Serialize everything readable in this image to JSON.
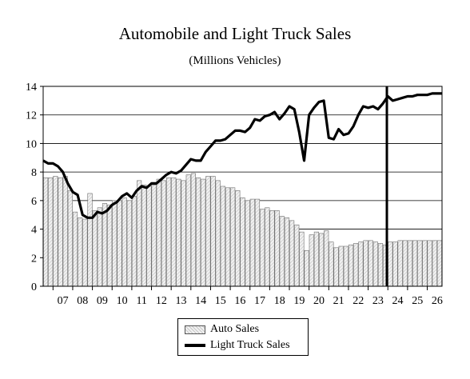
{
  "chart_data": {
    "type": "bar",
    "title": "Automobile and Light Truck Sales",
    "subtitle": "(Millions Vehicles)",
    "xlabel": "",
    "ylabel": "",
    "ylim": [
      0,
      14
    ],
    "y_ticks": [
      "0",
      "2",
      "4",
      "6",
      "8",
      "10",
      "12",
      "14"
    ],
    "categories": [
      "07",
      "08",
      "09",
      "10",
      "11",
      "12",
      "13",
      "14",
      "15",
      "16",
      "17",
      "18",
      "19",
      "20",
      "21",
      "22",
      "23",
      "24",
      "25",
      "26"
    ],
    "x_range": [
      2006.5,
      2026.75
    ],
    "grid": "horizontal",
    "legend_position": "bottom-center",
    "annotation": {
      "type": "vertical-line",
      "x": 2023.95
    },
    "series": [
      {
        "name": "Auto Sales",
        "type": "bar",
        "x": [
          2006.625,
          2006.875,
          2007.125,
          2007.375,
          2007.625,
          2007.875,
          2008.125,
          2008.375,
          2008.625,
          2008.875,
          2009.125,
          2009.375,
          2009.625,
          2009.875,
          2010.125,
          2010.375,
          2010.625,
          2010.875,
          2011.125,
          2011.375,
          2011.625,
          2011.875,
          2012.125,
          2012.375,
          2012.625,
          2012.875,
          2013.125,
          2013.375,
          2013.625,
          2013.875,
          2014.125,
          2014.375,
          2014.625,
          2014.875,
          2015.125,
          2015.375,
          2015.625,
          2015.875,
          2016.125,
          2016.375,
          2016.625,
          2016.875,
          2017.125,
          2017.375,
          2017.625,
          2017.875,
          2018.125,
          2018.375,
          2018.625,
          2018.875,
          2019.125,
          2019.375,
          2019.625,
          2019.875,
          2020.125,
          2020.375,
          2020.625,
          2020.875,
          2021.125,
          2021.375,
          2021.625,
          2021.875,
          2022.125,
          2022.375,
          2022.625,
          2022.875,
          2023.125,
          2023.375,
          2023.625,
          2023.875,
          2024.125,
          2024.375,
          2024.625,
          2024.875,
          2025.125,
          2025.375,
          2025.625,
          2025.875,
          2026.125,
          2026.375,
          2026.625
        ],
        "values": [
          7.6,
          7.6,
          7.7,
          7.6,
          7.7,
          6.7,
          5.2,
          4.8,
          4.7,
          6.5,
          5.3,
          5.5,
          5.8,
          5.7,
          6.0,
          6.0,
          6.2,
          6.0,
          6.3,
          7.4,
          7.1,
          7.0,
          7.1,
          7.5,
          7.4,
          7.6,
          7.6,
          7.5,
          7.4,
          7.8,
          7.9,
          7.6,
          7.5,
          7.7,
          7.7,
          7.4,
          7.0,
          6.9,
          6.9,
          6.7,
          6.2,
          6.0,
          6.1,
          6.1,
          5.4,
          5.5,
          5.3,
          5.3,
          4.9,
          4.8,
          4.6,
          4.3,
          3.8,
          2.5,
          3.6,
          3.8,
          3.7,
          3.9,
          3.1,
          2.7,
          2.8,
          2.8,
          2.9,
          3.0,
          3.1,
          3.2,
          3.2,
          3.1,
          3.0,
          2.9,
          3.1,
          3.1,
          3.2,
          3.2,
          3.2,
          3.2,
          3.2,
          3.2,
          3.2,
          3.2,
          3.2
        ]
      },
      {
        "name": "Light Truck Sales",
        "type": "line",
        "x": [
          2006.5,
          2006.75,
          2007.0,
          2007.25,
          2007.5,
          2007.75,
          2008.0,
          2008.25,
          2008.5,
          2008.75,
          2009.0,
          2009.25,
          2009.5,
          2009.75,
          2010.0,
          2010.25,
          2010.5,
          2010.75,
          2011.0,
          2011.25,
          2011.5,
          2011.75,
          2012.0,
          2012.25,
          2012.5,
          2012.75,
          2013.0,
          2013.25,
          2013.5,
          2013.75,
          2014.0,
          2014.25,
          2014.5,
          2014.75,
          2015.0,
          2015.25,
          2015.5,
          2015.75,
          2016.0,
          2016.25,
          2016.5,
          2016.75,
          2017.0,
          2017.25,
          2017.5,
          2017.75,
          2018.0,
          2018.25,
          2018.5,
          2018.75,
          2019.0,
          2019.25,
          2019.5,
          2019.75,
          2020.0,
          2020.25,
          2020.5,
          2020.75,
          2021.0,
          2021.25,
          2021.5,
          2021.75,
          2022.0,
          2022.25,
          2022.5,
          2022.75,
          2023.0,
          2023.25,
          2023.5,
          2023.75,
          2024.0,
          2024.25,
          2024.5,
          2024.75,
          2025.0,
          2025.25,
          2025.5,
          2025.75,
          2026.0,
          2026.25,
          2026.5,
          2026.75
        ],
        "values": [
          8.8,
          8.6,
          8.6,
          8.4,
          8.0,
          7.2,
          6.6,
          6.4,
          5.0,
          4.8,
          4.8,
          5.2,
          5.1,
          5.3,
          5.7,
          5.9,
          6.3,
          6.5,
          6.2,
          6.7,
          7.0,
          6.9,
          7.2,
          7.2,
          7.5,
          7.8,
          8.0,
          7.9,
          8.1,
          8.5,
          8.9,
          8.8,
          8.8,
          9.4,
          9.8,
          10.2,
          10.2,
          10.3,
          10.6,
          10.9,
          10.9,
          10.8,
          11.1,
          11.7,
          11.6,
          11.9,
          12.0,
          12.2,
          11.7,
          12.1,
          12.6,
          12.4,
          10.8,
          8.8,
          12.0,
          12.5,
          12.9,
          13.0,
          10.4,
          10.3,
          11.0,
          10.6,
          10.7,
          11.2,
          12.0,
          12.6,
          12.5,
          12.6,
          12.4,
          12.8,
          13.3,
          13.0,
          13.1,
          13.2,
          13.3,
          13.3,
          13.4,
          13.4,
          13.4,
          13.5,
          13.5,
          13.5
        ]
      }
    ]
  }
}
